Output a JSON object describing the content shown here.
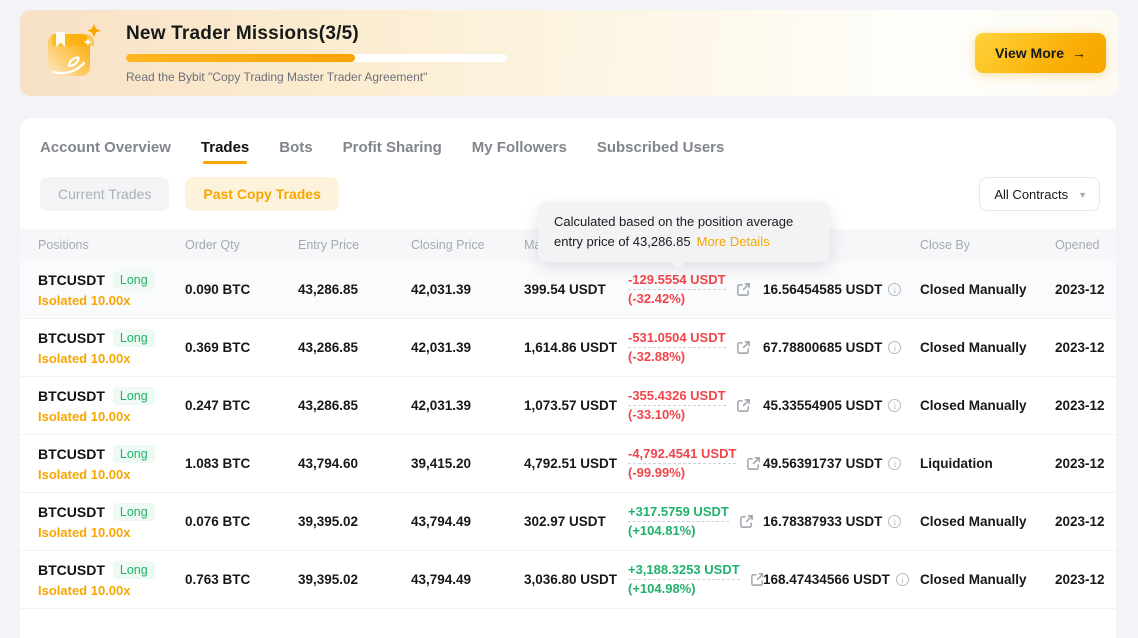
{
  "banner": {
    "title": "New Trader Missions(3/5)",
    "subtitle": "Read the Bybit \"Copy Trading Master Trader Agreement\"",
    "progress_percent": 60,
    "view_more_label": "View More",
    "view_more_arrow": "→",
    "accent_color": "#f7a600"
  },
  "tabs": [
    {
      "label": "Account Overview",
      "active": false
    },
    {
      "label": "Trades",
      "active": true
    },
    {
      "label": "Bots",
      "active": false
    },
    {
      "label": "Profit Sharing",
      "active": false
    },
    {
      "label": "My Followers",
      "active": false
    },
    {
      "label": "Subscribed Users",
      "active": false
    }
  ],
  "filters": {
    "current_trades_label": "Current Trades",
    "past_copy_trades_label": "Past Copy Trades",
    "contracts_dropdown_value": "All Contracts"
  },
  "tooltip": {
    "line1": "Calculated based on the position average entry",
    "line2": "price of 43,286.85",
    "link_label": "More Details"
  },
  "table": {
    "headers": [
      "Positions",
      "Order Qty",
      "Entry Price",
      "Closing Price",
      "Margin",
      "",
      "",
      "Close By",
      "Opened"
    ],
    "rows": [
      {
        "symbol": "BTCUSDT",
        "side": "Long",
        "mode": "Isolated 10.00x",
        "qty": "0.090 BTC",
        "entry": "43,286.85",
        "closing": "42,031.39",
        "margin": "399.54 USDT",
        "pnl": "-129.5554 USDT",
        "roi": "(-32.42%)",
        "fee": "16.56454585 USDT",
        "close_by": "Closed Manually",
        "opened": "2023-12"
      },
      {
        "symbol": "BTCUSDT",
        "side": "Long",
        "mode": "Isolated 10.00x",
        "qty": "0.369 BTC",
        "entry": "43,286.85",
        "closing": "42,031.39",
        "margin": "1,614.86 USDT",
        "pnl": "-531.0504 USDT",
        "roi": "(-32.88%)",
        "fee": "67.78800685 USDT",
        "close_by": "Closed Manually",
        "opened": "2023-12"
      },
      {
        "symbol": "BTCUSDT",
        "side": "Long",
        "mode": "Isolated 10.00x",
        "qty": "0.247 BTC",
        "entry": "43,286.85",
        "closing": "42,031.39",
        "margin": "1,073.57 USDT",
        "pnl": "-355.4326 USDT",
        "roi": "(-33.10%)",
        "fee": "45.33554905 USDT",
        "close_by": "Closed Manually",
        "opened": "2023-12"
      },
      {
        "symbol": "BTCUSDT",
        "side": "Long",
        "mode": "Isolated 10.00x",
        "qty": "1.083 BTC",
        "entry": "43,794.60",
        "closing": "39,415.20",
        "margin": "4,792.51 USDT",
        "pnl": "-4,792.4541 USDT",
        "roi": "(-99.99%)",
        "fee": "49.56391737 USDT",
        "close_by": "Liquidation",
        "opened": "2023-12"
      },
      {
        "symbol": "BTCUSDT",
        "side": "Long",
        "mode": "Isolated 10.00x",
        "qty": "0.076 BTC",
        "entry": "39,395.02",
        "closing": "43,794.49",
        "margin": "302.97 USDT",
        "pnl": "+317.5759 USDT",
        "roi": "(+104.81%)",
        "fee": "16.78387933 USDT",
        "close_by": "Closed Manually",
        "opened": "2023-12"
      },
      {
        "symbol": "BTCUSDT",
        "side": "Long",
        "mode": "Isolated 10.00x",
        "qty": "0.763 BTC",
        "entry": "39,395.02",
        "closing": "43,794.49",
        "margin": "3,036.80 USDT",
        "pnl": "+3,188.3253 USDT",
        "roi": "(+104.98%)",
        "fee": "168.47434566 USDT",
        "close_by": "Closed Manually",
        "opened": "2023-12"
      }
    ]
  },
  "colors": {
    "accent": "#f7a600",
    "positive": "#20b26c",
    "negative": "#ef454a"
  }
}
